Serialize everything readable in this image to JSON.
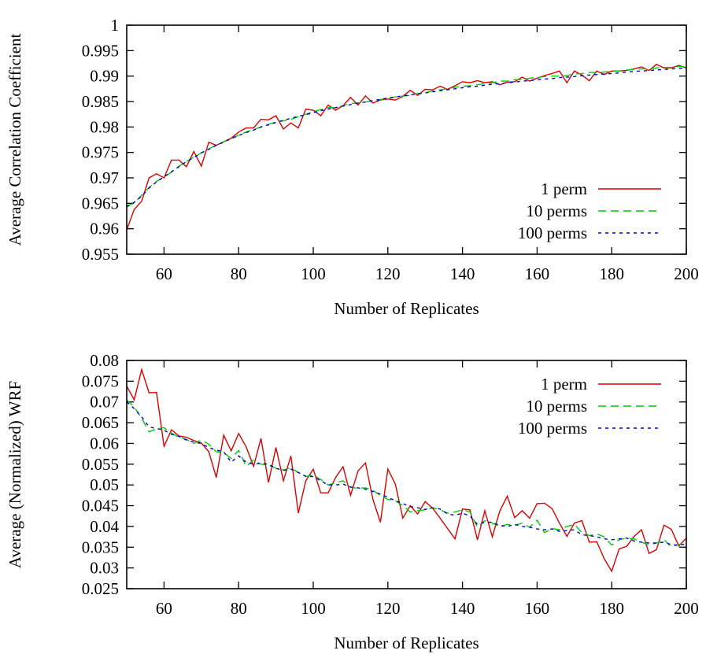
{
  "chart_data": [
    {
      "type": "line",
      "xlabel": "Number of Replicates",
      "ylabel": "Average Correlation Coefficient",
      "xlim": [
        50,
        200
      ],
      "ylim": [
        0.955,
        1.0
      ],
      "xticks": [
        60,
        80,
        100,
        120,
        140,
        160,
        180,
        200
      ],
      "yticks": [
        0.955,
        0.96,
        0.965,
        0.97,
        0.975,
        0.98,
        0.985,
        0.99,
        0.995,
        1.0
      ],
      "xtick_labels": [
        "60",
        "80",
        "100",
        "120",
        "140",
        "160",
        "180",
        "200"
      ],
      "ytick_labels": [
        "0.955",
        "0.96",
        "0.965",
        "0.97",
        "0.975",
        "0.98",
        "0.985",
        "0.99",
        "0.995",
        "1"
      ],
      "legend_position": "bottom-right",
      "border": true,
      "grid": false,
      "x": [
        50,
        52,
        54,
        56,
        58,
        60,
        62,
        64,
        66,
        68,
        70,
        72,
        74,
        76,
        78,
        80,
        82,
        84,
        86,
        88,
        90,
        92,
        94,
        96,
        98,
        100,
        102,
        104,
        106,
        108,
        110,
        112,
        114,
        116,
        118,
        120,
        122,
        124,
        126,
        128,
        130,
        132,
        134,
        136,
        138,
        140,
        142,
        144,
        146,
        148,
        150,
        152,
        154,
        156,
        158,
        160,
        162,
        164,
        166,
        168,
        170,
        172,
        174,
        176,
        178,
        180,
        182,
        184,
        186,
        188,
        190,
        192,
        194,
        196,
        198,
        200
      ],
      "series": [
        {
          "name": "1 perm",
          "color": "#dd0000",
          "dash": "solid",
          "values": [
            0.9598,
            0.9638,
            0.9654,
            0.97,
            0.9708,
            0.97,
            0.9735,
            0.9735,
            0.9722,
            0.9752,
            0.9723,
            0.977,
            0.9764,
            0.9771,
            0.9778,
            0.979,
            0.9798,
            0.9798,
            0.9815,
            0.9814,
            0.9822,
            0.9796,
            0.9808,
            0.9798,
            0.9835,
            0.9833,
            0.9822,
            0.9843,
            0.9833,
            0.9842,
            0.9858,
            0.9843,
            0.9861,
            0.9847,
            0.9853,
            0.9855,
            0.9853,
            0.986,
            0.9872,
            0.9862,
            0.9874,
            0.9873,
            0.988,
            0.9874,
            0.9881,
            0.9889,
            0.9887,
            0.9891,
            0.9887,
            0.9889,
            0.9883,
            0.9888,
            0.9889,
            0.9898,
            0.989,
            0.9896,
            0.9901,
            0.9905,
            0.991,
            0.9887,
            0.991,
            0.9902,
            0.9891,
            0.991,
            0.9903,
            0.991,
            0.991,
            0.9911,
            0.9914,
            0.9918,
            0.9911,
            0.9923,
            0.9916,
            0.9916,
            0.9921,
            0.9916
          ]
        },
        {
          "name": "10 perms",
          "color": "#00cc00",
          "dash": "long",
          "values": [
            0.9645,
            0.965,
            0.9666,
            0.9681,
            0.9693,
            0.9702,
            0.9711,
            0.9723,
            0.9732,
            0.9741,
            0.9749,
            0.9757,
            0.9764,
            0.9771,
            0.9777,
            0.9784,
            0.979,
            0.9795,
            0.98,
            0.9805,
            0.981,
            0.9812,
            0.9815,
            0.982,
            0.9825,
            0.983,
            0.9834,
            0.9838,
            0.9838,
            0.9842,
            0.9846,
            0.9847,
            0.9849,
            0.9852,
            0.9854,
            0.9856,
            0.9859,
            0.9861,
            0.9862,
            0.9866,
            0.9867,
            0.9871,
            0.9873,
            0.9875,
            0.9878,
            0.988,
            0.9881,
            0.9883,
            0.9885,
            0.9887,
            0.989,
            0.989,
            0.9893,
            0.9893,
            0.9896,
            0.9897,
            0.9899,
            0.99,
            0.99,
            0.9901,
            0.9904,
            0.9905,
            0.9907,
            0.9907,
            0.9908,
            0.9909,
            0.991,
            0.9912,
            0.9913,
            0.9914,
            0.9914,
            0.9916,
            0.9917,
            0.9917,
            0.9919,
            0.9918
          ]
        },
        {
          "name": "100 perms",
          "color": "#0000cc",
          "dash": "short",
          "values": [
            0.9643,
            0.9652,
            0.9664,
            0.968,
            0.9692,
            0.9702,
            0.9712,
            0.9722,
            0.9732,
            0.974,
            0.9749,
            0.9756,
            0.9764,
            0.977,
            0.9777,
            0.9783,
            0.9789,
            0.9794,
            0.98,
            0.9804,
            0.9809,
            0.9813,
            0.9817,
            0.9821,
            0.9824,
            0.9828,
            0.9832,
            0.9835,
            0.9838,
            0.9841,
            0.9844,
            0.9847,
            0.9849,
            0.9852,
            0.9854,
            0.9857,
            0.9859,
            0.9861,
            0.9863,
            0.9865,
            0.9867,
            0.9869,
            0.9871,
            0.9873,
            0.9875,
            0.9877,
            0.9879,
            0.988,
            0.9882,
            0.9884,
            0.9885,
            0.9887,
            0.9888,
            0.989,
            0.9891,
            0.9893,
            0.9894,
            0.9895,
            0.9897,
            0.9898,
            0.9899,
            0.9901,
            0.9902,
            0.9903,
            0.9904,
            0.9905,
            0.9906,
            0.9908,
            0.9909,
            0.991,
            0.9911,
            0.9912,
            0.9913,
            0.9914,
            0.9915,
            0.9916
          ]
        }
      ]
    },
    {
      "type": "line",
      "xlabel": "Number of Replicates",
      "ylabel": "Average (Normalized) WRF",
      "xlim": [
        50,
        200
      ],
      "ylim": [
        0.025,
        0.08
      ],
      "xticks": [
        60,
        80,
        100,
        120,
        140,
        160,
        180,
        200
      ],
      "yticks": [
        0.025,
        0.03,
        0.035,
        0.04,
        0.045,
        0.05,
        0.055,
        0.06,
        0.065,
        0.07,
        0.075,
        0.08
      ],
      "xtick_labels": [
        "60",
        "80",
        "100",
        "120",
        "140",
        "160",
        "180",
        "200"
      ],
      "ytick_labels": [
        "0.025",
        "0.03",
        "0.035",
        "0.04",
        "0.045",
        "0.05",
        "0.055",
        "0.06",
        "0.065",
        "0.07",
        "0.075",
        "0.08"
      ],
      "legend_position": "top-right",
      "border": true,
      "grid": false,
      "x": [
        50,
        52,
        54,
        56,
        58,
        60,
        62,
        64,
        66,
        68,
        70,
        72,
        74,
        76,
        78,
        80,
        82,
        84,
        86,
        88,
        90,
        92,
        94,
        96,
        98,
        100,
        102,
        104,
        106,
        108,
        110,
        112,
        114,
        116,
        118,
        120,
        122,
        124,
        126,
        128,
        130,
        132,
        134,
        136,
        138,
        140,
        142,
        144,
        146,
        148,
        150,
        152,
        154,
        156,
        158,
        160,
        162,
        164,
        166,
        168,
        170,
        172,
        174,
        176,
        178,
        180,
        182,
        184,
        186,
        188,
        190,
        192,
        194,
        196,
        198,
        200
      ],
      "series": [
        {
          "name": "1 perm",
          "color": "#dd0000",
          "dash": "solid",
          "values": [
            0.0738,
            0.0705,
            0.0778,
            0.0722,
            0.0723,
            0.0593,
            0.0633,
            0.0618,
            0.0615,
            0.0607,
            0.0601,
            0.058,
            0.0518,
            0.062,
            0.0582,
            0.0624,
            0.0592,
            0.0545,
            0.0612,
            0.0506,
            0.059,
            0.051,
            0.057,
            0.0432,
            0.051,
            0.0538,
            0.0481,
            0.0481,
            0.0518,
            0.0544,
            0.0475,
            0.0534,
            0.0553,
            0.0465,
            0.041,
            0.0538,
            0.0502,
            0.042,
            0.045,
            0.043,
            0.046,
            0.0444,
            0.042,
            0.0395,
            0.037,
            0.0442,
            0.044,
            0.0368,
            0.0438,
            0.0375,
            0.0437,
            0.0473,
            0.0421,
            0.0438,
            0.042,
            0.0455,
            0.0456,
            0.0443,
            0.0408,
            0.0376,
            0.0408,
            0.0414,
            0.0362,
            0.0363,
            0.0322,
            0.0292,
            0.0346,
            0.0352,
            0.0376,
            0.0392,
            0.0335,
            0.0344,
            0.0403,
            0.0393,
            0.0353,
            0.0372
          ]
        },
        {
          "name": "10 perms",
          "color": "#00cc00",
          "dash": "long",
          "values": [
            0.0705,
            0.0688,
            0.0661,
            0.0628,
            0.0635,
            0.0638,
            0.0625,
            0.0615,
            0.061,
            0.06,
            0.0608,
            0.0598,
            0.058,
            0.0578,
            0.0564,
            0.0583,
            0.0545,
            0.056,
            0.055,
            0.0548,
            0.054,
            0.0536,
            0.0541,
            0.053,
            0.052,
            0.0524,
            0.0513,
            0.05,
            0.0505,
            0.051,
            0.0494,
            0.0492,
            0.0493,
            0.0487,
            0.0475,
            0.0465,
            0.0462,
            0.045,
            0.0435,
            0.0438,
            0.044,
            0.0445,
            0.044,
            0.0432,
            0.0435,
            0.044,
            0.0435,
            0.0398,
            0.0414,
            0.0408,
            0.04,
            0.0405,
            0.0403,
            0.0408,
            0.0398,
            0.0415,
            0.0385,
            0.0395,
            0.0392,
            0.04,
            0.0405,
            0.0385,
            0.0378,
            0.0382,
            0.0375,
            0.0355,
            0.0368,
            0.0372,
            0.037,
            0.0362,
            0.0355,
            0.036,
            0.0368,
            0.0351,
            0.0356,
            0.0362
          ]
        },
        {
          "name": "100 perms",
          "color": "#0000cc",
          "dash": "short",
          "values": [
            0.07,
            0.0684,
            0.0664,
            0.064,
            0.0636,
            0.0632,
            0.0622,
            0.0617,
            0.0608,
            0.0603,
            0.06,
            0.059,
            0.0584,
            0.058,
            0.0555,
            0.057,
            0.0555,
            0.055,
            0.0552,
            0.055,
            0.054,
            0.0535,
            0.0538,
            0.053,
            0.0521,
            0.052,
            0.051,
            0.05,
            0.05,
            0.0502,
            0.0495,
            0.0493,
            0.049,
            0.0484,
            0.0478,
            0.047,
            0.0462,
            0.0455,
            0.0448,
            0.0445,
            0.0441,
            0.0445,
            0.0442,
            0.043,
            0.0427,
            0.0432,
            0.0425,
            0.0405,
            0.041,
            0.041,
            0.0402,
            0.04,
            0.0405,
            0.04,
            0.0398,
            0.0394,
            0.0392,
            0.0394,
            0.0388,
            0.039,
            0.0392,
            0.038,
            0.0378,
            0.0375,
            0.037,
            0.0368,
            0.037,
            0.0372,
            0.0365,
            0.0362,
            0.036,
            0.036,
            0.0362,
            0.0356,
            0.0355,
            0.0358
          ]
        }
      ]
    }
  ]
}
